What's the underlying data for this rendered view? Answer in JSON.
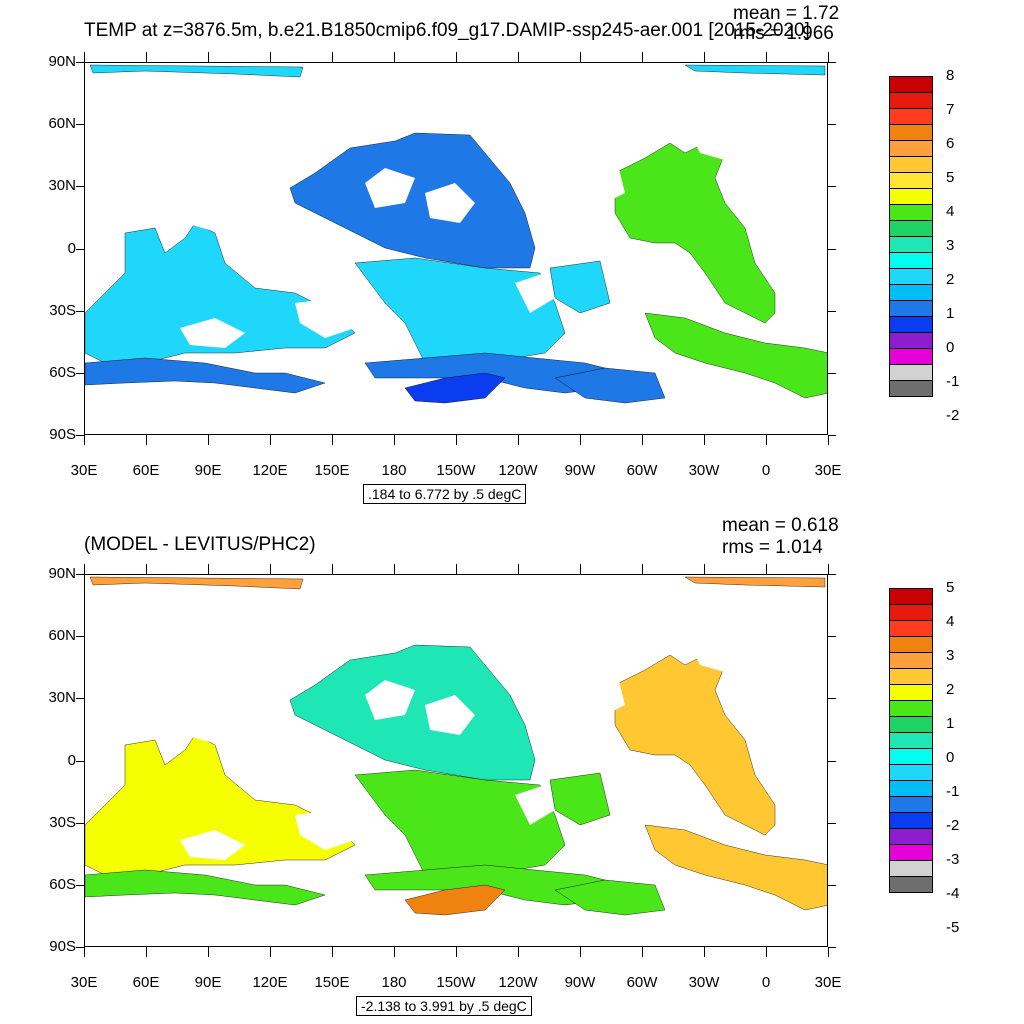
{
  "panels": [
    {
      "title": "TEMP at z=3876.5m, b.e21.B1850cmip6.f09_g17.DAMIP-ssp245-aer.001 [2015-2020]",
      "mean": "mean = 1.72",
      "rms": "rms = 1.966",
      "info": ".184 to 6.772 by .5 degC",
      "y_labels": [
        "90N",
        "60N",
        "30N",
        "0",
        "30S",
        "60S",
        "90S"
      ],
      "x_labels": [
        "30E",
        "60E",
        "90E",
        "120E",
        "150E",
        "180",
        "150W",
        "120W",
        "90W",
        "60W",
        "30W",
        "0",
        "30E"
      ],
      "colorbar_labels": [
        "8",
        "7",
        "6",
        "5",
        "4",
        "3",
        "2",
        "1",
        "0",
        "-1",
        "-2"
      ],
      "colorbar_colors": [
        "#c80000",
        "#e61a0f",
        "#ff3c1e",
        "#f0820f",
        "#ffa03c",
        "#ffc832",
        "#ffe632",
        "#f5ff00",
        "#4be61a",
        "#1ed264",
        "#1ee6b4",
        "#00fff0",
        "#1ed7fa",
        "#00bef5",
        "#1e78e6",
        "#0a3cf0",
        "#8c1ecd",
        "#e600d7",
        "#d2d2d2",
        "#6e6e6e"
      ],
      "field_colors": {
        "arctic": "#1ed7fa",
        "pacific": "#1e78e6",
        "south_pacific": "#1ed7fa",
        "indian": "#1ed7fa",
        "atlantic": "#4be61a",
        "southern": "#1e78e6",
        "deep": "#0a3cf0"
      }
    },
    {
      "title": "(MODEL - LEVITUS/PHC2)",
      "mean": "mean = 0.618",
      "rms": "rms = 1.014",
      "info": "-2.138 to 3.991 by .5 degC",
      "y_labels": [
        "90N",
        "60N",
        "30N",
        "0",
        "30S",
        "60S",
        "90S"
      ],
      "x_labels": [
        "30E",
        "60E",
        "90E",
        "120E",
        "150E",
        "180",
        "150W",
        "120W",
        "90W",
        "60W",
        "30W",
        "0",
        "30E"
      ],
      "colorbar_labels": [
        "5",
        "4",
        "3",
        "2",
        "1",
        "0",
        "-1",
        "-2",
        "-3",
        "-4",
        "-5"
      ],
      "colorbar_colors": [
        "#c80000",
        "#e61a0f",
        "#ff3c1e",
        "#f0820f",
        "#ffa03c",
        "#ffc832",
        "#f5ff00",
        "#4be61a",
        "#1ed264",
        "#1ee6b4",
        "#00fff0",
        "#1ed7fa",
        "#00bef5",
        "#1e78e6",
        "#0a3cf0",
        "#8c1ecd",
        "#e600d7",
        "#d2d2d2",
        "#6e6e6e"
      ],
      "field_colors": {
        "arctic": "#ffa03c",
        "pacific": "#1ee6b4",
        "south_pacific": "#4be61a",
        "indian": "#f5ff00",
        "atlantic": "#ffc832",
        "southern": "#4be61a",
        "deep": "#f0820f"
      }
    }
  ]
}
